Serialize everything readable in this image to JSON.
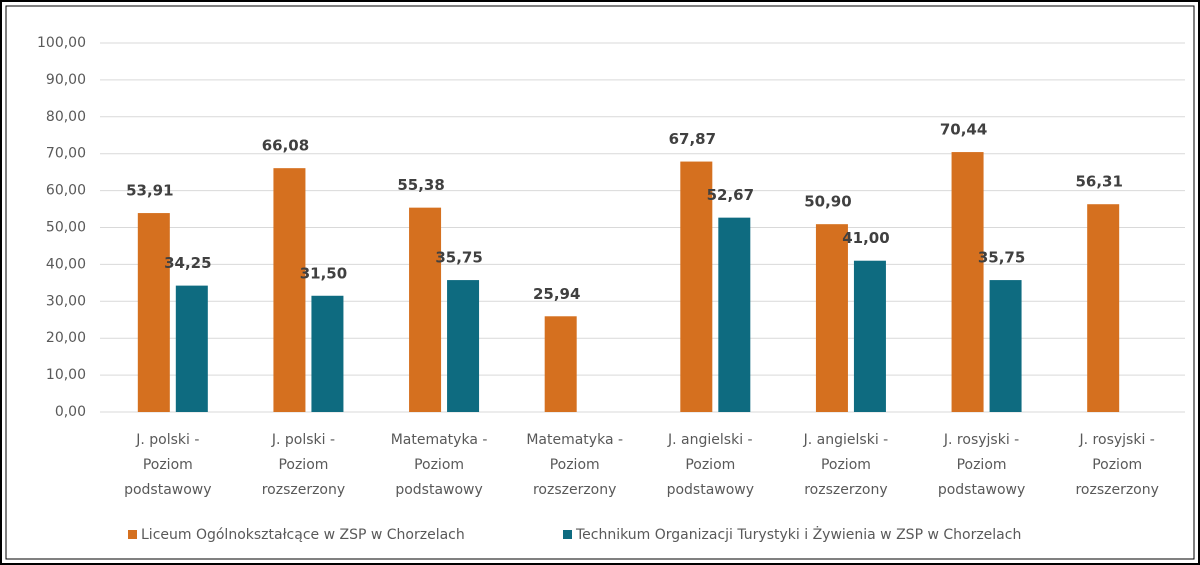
{
  "chart_data": {
    "type": "bar",
    "categories": [
      [
        "J. polski -",
        "Poziom",
        "podstawowy"
      ],
      [
        "J. polski -",
        "Poziom",
        "rozszerzony"
      ],
      [
        "Matematyka -",
        "Poziom",
        "podstawowy"
      ],
      [
        "Matematyka -",
        "Poziom",
        "rozszerzony"
      ],
      [
        "J. angielski -",
        "Poziom",
        "podstawowy"
      ],
      [
        "J. angielski -",
        "Poziom",
        "rozszerzony"
      ],
      [
        "J. rosyjski -",
        "Poziom",
        "podstawowy"
      ],
      [
        "J. rosyjski -",
        "Poziom",
        "rozszerzony"
      ]
    ],
    "series": [
      {
        "name": "Liceum Ogólnokształcące w ZSP w Chorzelach",
        "color": "#d5701f",
        "values": [
          53.91,
          66.08,
          55.38,
          25.94,
          67.87,
          50.9,
          70.44,
          56.31
        ],
        "value_labels": [
          "53,91",
          "66,08",
          "55,38",
          "25,94",
          "67,87",
          "50,90",
          "70,44",
          "56,31"
        ]
      },
      {
        "name": "Technikum Organizacji Turystyki i Żywienia w ZSP w Chorzelach",
        "color": "#0e6b80",
        "values": [
          34.25,
          31.5,
          35.75,
          null,
          52.67,
          41.0,
          35.75,
          null
        ],
        "value_labels": [
          "34,25",
          "31,50",
          "35,75",
          null,
          "52,67",
          "41,00",
          "35,75",
          null
        ]
      }
    ],
    "ylim": [
      0,
      100
    ],
    "yticks": [
      {
        "value": 0,
        "label": "0,00"
      },
      {
        "value": 10,
        "label": "10,00"
      },
      {
        "value": 20,
        "label": "20,00"
      },
      {
        "value": 30,
        "label": "30,00"
      },
      {
        "value": 40,
        "label": "40,00"
      },
      {
        "value": 50,
        "label": "50,00"
      },
      {
        "value": 60,
        "label": "60,00"
      },
      {
        "value": 70,
        "label": "70,00"
      },
      {
        "value": 80,
        "label": "80,00"
      },
      {
        "value": 90,
        "label": "90,00"
      },
      {
        "value": 100,
        "label": "100,00"
      }
    ],
    "grid": true,
    "legend": "bottom"
  }
}
